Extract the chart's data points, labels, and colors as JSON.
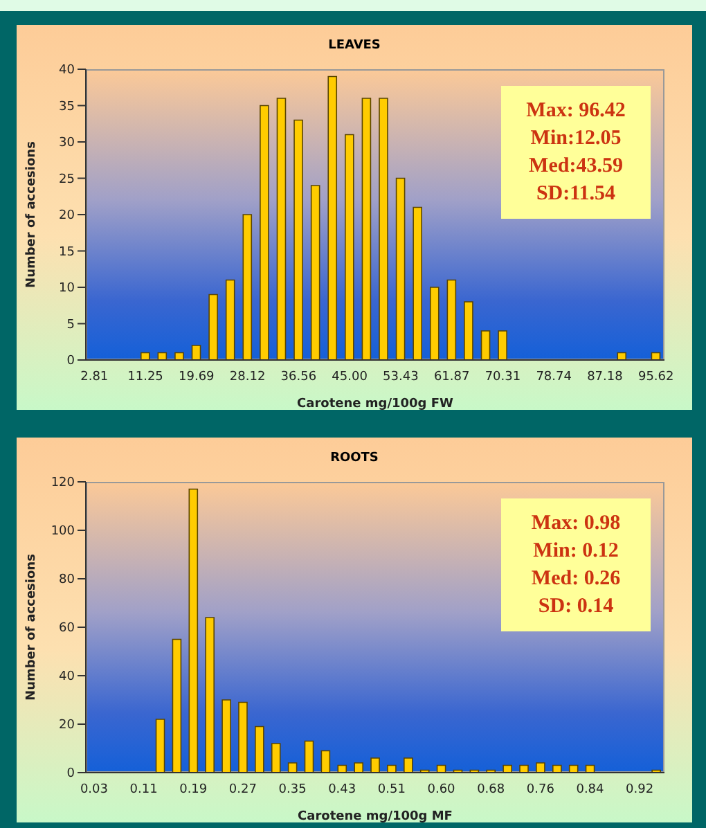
{
  "chart_data": [
    {
      "type": "bar",
      "title": "LEAVES",
      "xlabel": "Carotene mg/100g FW",
      "ylabel": "Number of accesions",
      "categories": [
        "2.81",
        null,
        null,
        "11.25",
        null,
        null,
        "19.69",
        null,
        null,
        "28.12",
        null,
        null,
        "36.56",
        null,
        null,
        "45.00",
        null,
        null,
        "53.43",
        null,
        null,
        "61.87",
        null,
        null,
        "70.31",
        null,
        null,
        "78.74",
        null,
        null,
        "87.18",
        null,
        null,
        "95.62"
      ],
      "values": [
        0,
        0,
        0,
        1,
        1,
        1,
        2,
        9,
        11,
        20,
        35,
        36,
        33,
        24,
        39,
        31,
        36,
        36,
        25,
        21,
        10,
        11,
        8,
        4,
        4,
        0,
        0,
        0,
        0,
        0,
        0,
        1,
        0,
        1
      ],
      "color": "#ffcc00",
      "ylim": [
        0,
        40
      ],
      "yticks": [
        0,
        5,
        10,
        15,
        20,
        25,
        30,
        35,
        40
      ],
      "grid": false,
      "annotations": [
        "Max: 96.42",
        "Min:12.05",
        "Med:43.59",
        "SD:11.54"
      ]
    },
    {
      "type": "bar",
      "title": "ROOTS",
      "xlabel": "Carotene mg/100g MF",
      "ylabel": "Number of accesions",
      "categories": [
        "0.03",
        null,
        null,
        "0.11",
        null,
        null,
        "0.19",
        null,
        null,
        "0.27",
        null,
        null,
        "0.35",
        null,
        null,
        "0.43",
        null,
        null,
        "0.51",
        null,
        null,
        "0.60",
        null,
        null,
        "0.68",
        null,
        null,
        "0.76",
        null,
        null,
        "0.84",
        null,
        null,
        "0.92",
        null
      ],
      "values": [
        null,
        0,
        0,
        0,
        22,
        55,
        117,
        64,
        30,
        29,
        19,
        12,
        4,
        13,
        9,
        3,
        4,
        6,
        3,
        6,
        1,
        3,
        1,
        1,
        1,
        3,
        3,
        4,
        3,
        3,
        3,
        0,
        0,
        0,
        1
      ],
      "color": "#ffcc00",
      "ylim": [
        0,
        120
      ],
      "yticks": [
        0,
        20,
        40,
        60,
        80,
        100,
        120
      ],
      "grid": false,
      "annotations": [
        "Max: 0.98",
        "Min: 0.12",
        "Med: 0.26",
        "SD: 0.14"
      ]
    }
  ]
}
